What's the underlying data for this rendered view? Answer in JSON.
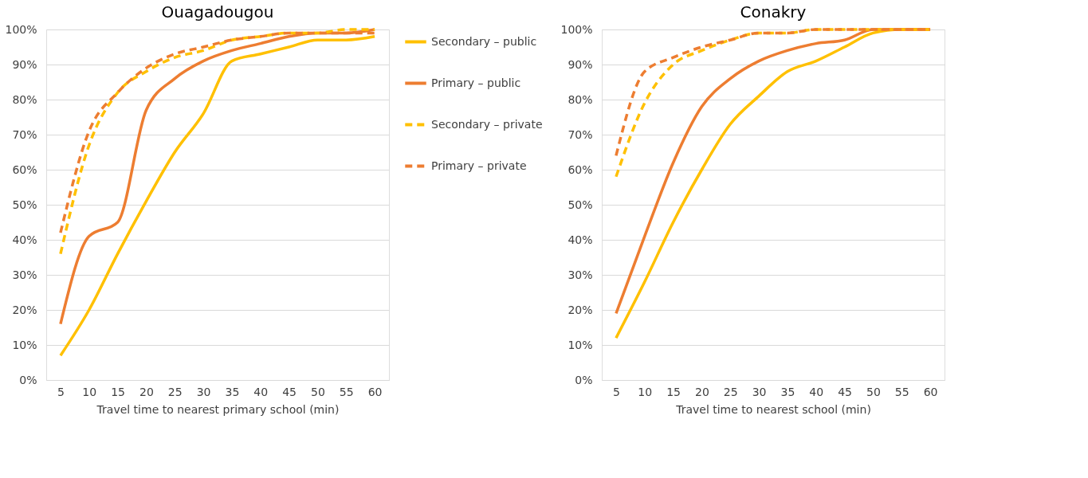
{
  "chart_data": [
    {
      "type": "line",
      "title": "Ouagadougou",
      "xlabel": "Travel time to nearest primary school (min)",
      "categories": [
        "5",
        "10",
        "15",
        "20",
        "25",
        "30",
        "35",
        "40",
        "45",
        "50",
        "55",
        "60"
      ],
      "ylim": [
        0,
        100
      ],
      "yticks": [
        {
          "value": 0,
          "label": "0%"
        },
        {
          "value": 10,
          "label": "10%"
        },
        {
          "value": 20,
          "label": "20%"
        },
        {
          "value": 30,
          "label": "30%"
        },
        {
          "value": 40,
          "label": "40%"
        },
        {
          "value": 50,
          "label": "50%"
        },
        {
          "value": 60,
          "label": "60%"
        },
        {
          "value": 70,
          "label": "70%"
        },
        {
          "value": 80,
          "label": "80%"
        },
        {
          "value": 90,
          "label": "90%"
        },
        {
          "value": 100,
          "label": "100%"
        }
      ],
      "grid": "y",
      "legend": "right",
      "marker": "none",
      "series": [
        {
          "name": "Secondary – public",
          "color": "#ffc000",
          "line_style": "solid",
          "values": [
            7,
            20,
            36,
            51,
            65,
            76,
            91,
            93,
            95,
            97,
            97,
            98
          ]
        },
        {
          "name": "Primary – public",
          "color": "#ed7d31",
          "line_style": "solid",
          "values": [
            16,
            41,
            45,
            77,
            86,
            91,
            94,
            96,
            98,
            99,
            99,
            100
          ]
        },
        {
          "name": "Secondary – private",
          "color": "#ffc000",
          "line_style": "dashed",
          "values": [
            36,
            67,
            82,
            88,
            92,
            94,
            97,
            98,
            99,
            99,
            100,
            100
          ]
        },
        {
          "name": "Primary – private",
          "color": "#ed7d31",
          "line_style": "dashed",
          "values": [
            42,
            71,
            82,
            89,
            93,
            95,
            97,
            98,
            99,
            99,
            99,
            99
          ]
        }
      ]
    },
    {
      "type": "line",
      "title": "Conakry",
      "xlabel": "Travel time to nearest school (min)",
      "categories": [
        "5",
        "10",
        "15",
        "20",
        "25",
        "30",
        "35",
        "40",
        "45",
        "50",
        "55",
        "60"
      ],
      "ylim": [
        0,
        100
      ],
      "yticks": [
        {
          "value": 0,
          "label": "0%"
        },
        {
          "value": 10,
          "label": "10%"
        },
        {
          "value": 20,
          "label": "20%"
        },
        {
          "value": 30,
          "label": "30%"
        },
        {
          "value": 40,
          "label": "40%"
        },
        {
          "value": 50,
          "label": "50%"
        },
        {
          "value": 60,
          "label": "60%"
        },
        {
          "value": 70,
          "label": "70%"
        },
        {
          "value": 80,
          "label": "80%"
        },
        {
          "value": 90,
          "label": "90%"
        },
        {
          "value": 100,
          "label": "100%"
        }
      ],
      "grid": "y",
      "marker": "none",
      "series": [
        {
          "color": "#ffc000",
          "line_style": "solid",
          "values": [
            12,
            28,
            45,
            60,
            73,
            81,
            88,
            91,
            95,
            99,
            100,
            100
          ]
        },
        {
          "color": "#ed7d31",
          "line_style": "solid",
          "values": [
            19,
            41,
            62,
            78,
            86,
            91,
            94,
            96,
            97,
            100,
            100,
            100
          ]
        },
        {
          "color": "#ffc000",
          "line_style": "dashed",
          "values": [
            58,
            79,
            90,
            94,
            97,
            99,
            99,
            100,
            100,
            100,
            100,
            100
          ]
        },
        {
          "color": "#ed7d31",
          "line_style": "dashed",
          "values": [
            64,
            88,
            92,
            95,
            97,
            99,
            99,
            100,
            100,
            100,
            100,
            100
          ]
        }
      ]
    }
  ]
}
